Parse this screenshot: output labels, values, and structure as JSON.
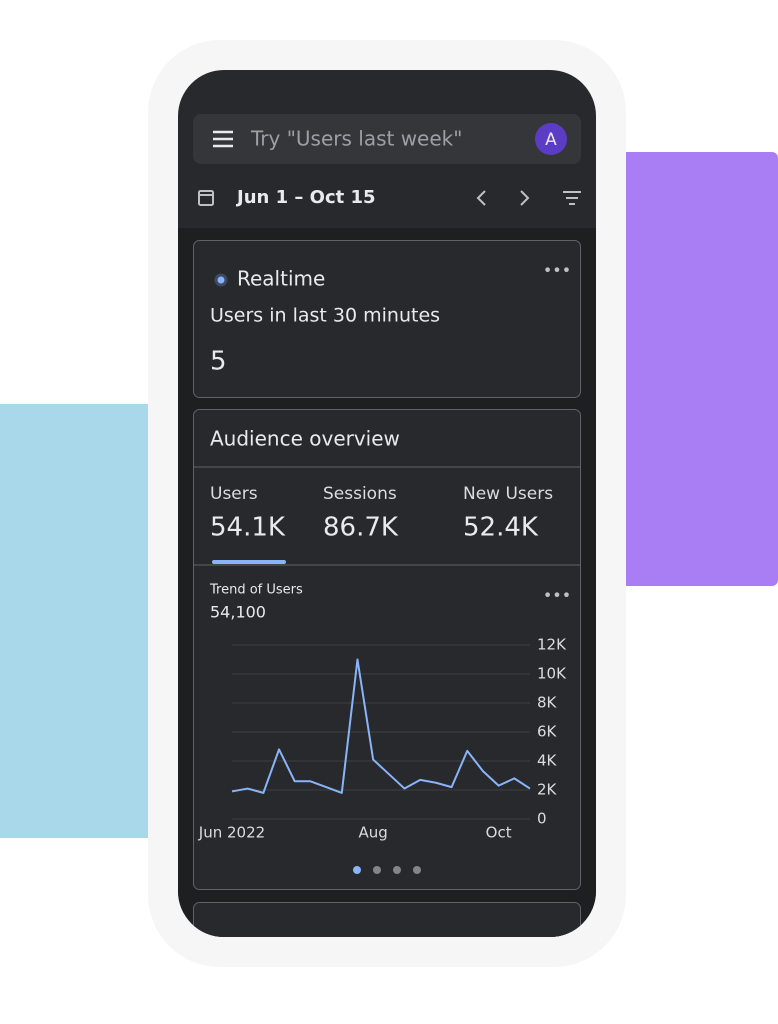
{
  "search": {
    "placeholder": "Try \"Users last week\"",
    "avatar": "A"
  },
  "date_range": "Jun 1 – Oct 15",
  "realtime": {
    "title": "Realtime",
    "subtitle": "Users in last 30 minutes",
    "value": 5
  },
  "audience": {
    "title": "Audience overview",
    "metrics": [
      {
        "label": "Users",
        "value": "54.1K"
      },
      {
        "label": "Sessions",
        "value": "86.7K"
      },
      {
        "label": "New Users",
        "value": "52.4K"
      }
    ]
  },
  "trend": {
    "type": "line",
    "title": "Trend of Users",
    "total": "54,100",
    "color": "#8ab4f8",
    "grid": true,
    "categories": [
      "Jun 2022",
      null,
      null,
      null,
      null,
      null,
      null,
      null,
      null,
      "Aug",
      null,
      null,
      null,
      null,
      null,
      null,
      null,
      "Oct",
      null,
      null
    ],
    "values": [
      1900,
      2100,
      1800,
      4800,
      2600,
      2600,
      2200,
      1800,
      11000,
      4100,
      3100,
      2100,
      2700,
      2500,
      2200,
      4700,
      3300,
      2300,
      2800,
      2100
    ],
    "ylim": [
      0,
      12000
    ],
    "yticks": [
      0,
      {
        "value": 2000,
        "label": "2K"
      },
      {
        "value": 4000,
        "label": "4K"
      },
      {
        "value": 6000,
        "label": "6K"
      },
      {
        "value": 8000,
        "label": "8K"
      },
      {
        "value": 10000,
        "label": "10K"
      },
      {
        "value": 12000,
        "label": "12K"
      }
    ]
  }
}
